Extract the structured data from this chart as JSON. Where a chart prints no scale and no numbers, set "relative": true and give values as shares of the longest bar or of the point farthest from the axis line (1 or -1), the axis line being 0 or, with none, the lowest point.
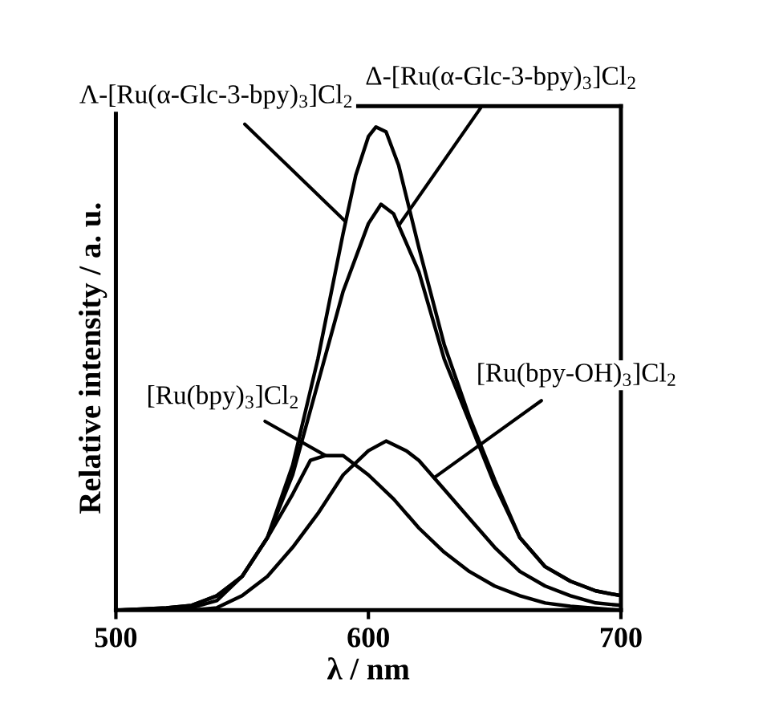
{
  "chart_data": {
    "type": "line",
    "relative": true,
    "xlabel": "λ / nm",
    "ylabel": "Relative intensity / a. u.",
    "xlim": [
      500,
      700
    ],
    "xticks": [
      500,
      600,
      700
    ],
    "grid": false,
    "legend": false,
    "marker": "none",
    "line_style": "solid",
    "series": [
      {
        "name": "Λ-[Ru(α-Glc-3-bpy)$_{3}$]Cl$_{2}$",
        "color": "#000000",
        "x": [
          500,
          520,
          530,
          540,
          550,
          560,
          570,
          580,
          590,
          595,
          600,
          603,
          607,
          612,
          620,
          630,
          640,
          650,
          660,
          670,
          680,
          690,
          700
        ],
        "values": [
          0,
          0.005,
          0.01,
          0.03,
          0.07,
          0.15,
          0.3,
          0.52,
          0.78,
          0.9,
          0.98,
          1,
          0.99,
          0.92,
          0.75,
          0.55,
          0.4,
          0.27,
          0.15,
          0.09,
          0.06,
          0.04,
          0.03
        ]
      },
      {
        "name": "Δ-[Ru(α-Glc-3-bpy)$_{3}$]Cl$_{2}$",
        "color": "#000000",
        "x": [
          500,
          520,
          530,
          540,
          550,
          560,
          570,
          580,
          590,
          600,
          605,
          610,
          620,
          630,
          640,
          650,
          660,
          670,
          680,
          690,
          700
        ],
        "values": [
          0,
          0.005,
          0.01,
          0.03,
          0.07,
          0.15,
          0.28,
          0.47,
          0.66,
          0.8,
          0.84,
          0.82,
          0.7,
          0.52,
          0.39,
          0.26,
          0.15,
          0.09,
          0.06,
          0.04,
          0.03
        ]
      },
      {
        "name": "[Ru(bpy-OH)$_{3}$]Cl$_{2}$",
        "color": "#000000",
        "x": [
          500,
          530,
          540,
          550,
          560,
          570,
          580,
          590,
          600,
          607,
          615,
          620,
          630,
          640,
          650,
          660,
          670,
          680,
          690,
          700
        ],
        "values": [
          0,
          0,
          0.005,
          0.03,
          0.07,
          0.13,
          0.2,
          0.28,
          0.33,
          0.35,
          0.33,
          0.31,
          0.25,
          0.19,
          0.13,
          0.08,
          0.05,
          0.03,
          0.015,
          0.01
        ]
      },
      {
        "name": "[Ru(bpy)$_{3}$]Cl$_{2}$",
        "color": "#000000",
        "x": [
          500,
          530,
          540,
          550,
          560,
          570,
          577,
          583,
          590,
          600,
          610,
          620,
          630,
          640,
          650,
          660,
          670,
          680,
          700
        ],
        "values": [
          0,
          0.005,
          0.02,
          0.07,
          0.15,
          0.24,
          0.31,
          0.32,
          0.32,
          0.28,
          0.23,
          0.17,
          0.12,
          0.08,
          0.05,
          0.03,
          0.015,
          0.008,
          0
        ]
      }
    ]
  }
}
